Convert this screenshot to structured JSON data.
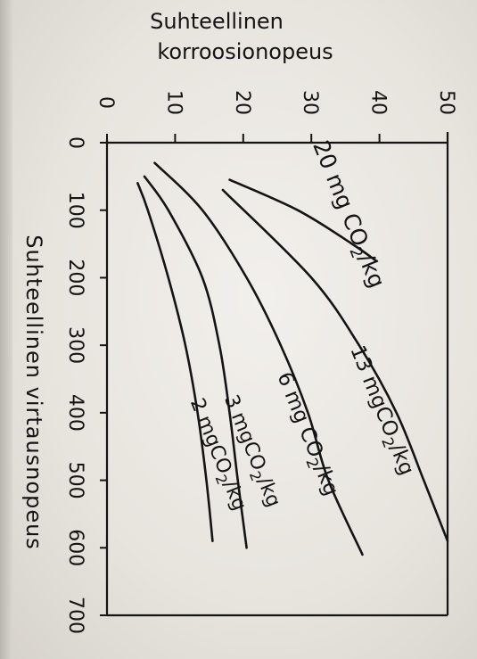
{
  "chart_data": {
    "type": "line",
    "orientation": "rotated-90-clockwise",
    "ylabel_lines": [
      "Suhteellinen",
      "korroosionopeus"
    ],
    "xlabel": "Suhteellinen virtausnopeus",
    "x_ticks": [
      "0",
      "100",
      "200",
      "300",
      "400",
      "500",
      "600",
      "700"
    ],
    "y_ticks": [
      "0",
      "10",
      "20",
      "30",
      "40",
      "50"
    ],
    "xlim": [
      0,
      700
    ],
    "ylim": [
      0,
      50
    ],
    "grid": false,
    "series": [
      {
        "name": "20 mgCO2/kg",
        "label_main": "20 mg CO",
        "label_sub": "2",
        "label_end": "/kg",
        "points": [
          [
            55,
            18
          ],
          [
            100,
            28
          ],
          [
            150,
            36
          ],
          [
            175,
            39.5
          ]
        ]
      },
      {
        "name": "13 mgCO2/kg",
        "label_main": "13 mgCO",
        "label_sub": "2",
        "label_end": "/kg",
        "points": [
          [
            70,
            17
          ],
          [
            200,
            30
          ],
          [
            300,
            37
          ],
          [
            400,
            42.5
          ],
          [
            500,
            46.5
          ],
          [
            590,
            50
          ]
        ]
      },
      {
        "name": "6 mgCO2/kg",
        "label_main": "6 mg CO",
        "label_sub": "2",
        "label_end": "/kg",
        "points": [
          [
            30,
            7
          ],
          [
            100,
            14
          ],
          [
            200,
            20.5
          ],
          [
            300,
            25.5
          ],
          [
            400,
            29.5
          ],
          [
            500,
            32.5
          ],
          [
            610,
            37.5
          ]
        ]
      },
      {
        "name": "3 mgCO2/kg",
        "label_main": "3 mgCO",
        "label_sub": "2",
        "label_end": "/kg",
        "points": [
          [
            50,
            5.5
          ],
          [
            100,
            9
          ],
          [
            200,
            14
          ],
          [
            300,
            16.5
          ],
          [
            400,
            18
          ],
          [
            500,
            19.2
          ],
          [
            600,
            20.5
          ]
        ]
      },
      {
        "name": "2 mgCO2/kg",
        "label_main": "2 mgCO",
        "label_sub": "2",
        "label_end": "/kg",
        "points": [
          [
            60,
            4.5
          ],
          [
            100,
            6
          ],
          [
            200,
            9
          ],
          [
            300,
            11.5
          ],
          [
            400,
            13.3
          ],
          [
            500,
            14.6
          ],
          [
            590,
            15.5
          ]
        ]
      }
    ]
  }
}
